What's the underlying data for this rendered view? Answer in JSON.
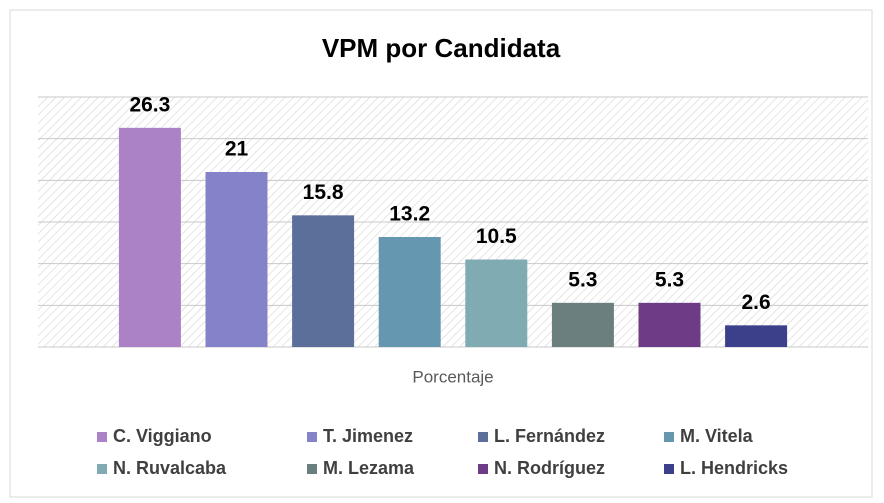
{
  "chart_data": {
    "type": "bar",
    "title": "VPM por Candidata",
    "categories": [
      "Porcentaje"
    ],
    "series": [
      {
        "name": "C. Viggiano",
        "color": "#ab82c6",
        "values": [
          26.3
        ]
      },
      {
        "name": "T. Jimenez",
        "color": "#8483c9",
        "values": [
          21
        ]
      },
      {
        "name": "L. Fernández",
        "color": "#5b6f9a",
        "values": [
          15.8
        ]
      },
      {
        "name": "M. Vitela",
        "color": "#6598b0",
        "values": [
          13.2
        ]
      },
      {
        "name": "N. Ruvalcaba",
        "color": "#80abb3",
        "values": [
          10.5
        ]
      },
      {
        "name": "M. Lezama",
        "color": "#6b7f7f",
        "values": [
          5.3
        ]
      },
      {
        "name": "N. Rodríguez",
        "color": "#6e3c86",
        "values": [
          5.3
        ]
      },
      {
        "name": "L. Hendricks",
        "color": "#3c408b",
        "values": [
          2.6
        ]
      }
    ],
    "ylim": [
      0,
      30
    ],
    "yticks": [
      0,
      5,
      10,
      15,
      20,
      25,
      30
    ],
    "grid": true,
    "legend": "bottom"
  }
}
